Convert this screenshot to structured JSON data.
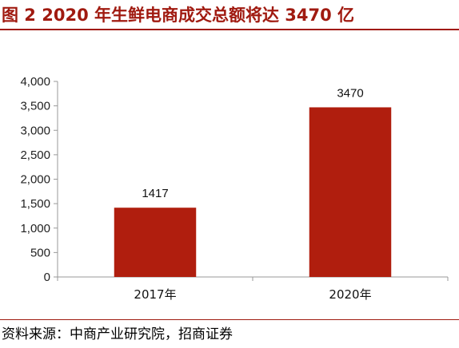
{
  "figure": {
    "title": "图 2 2020 年生鲜电商成交总额将达 3470 亿",
    "source": "资料来源：中商产业研究院，招商证券"
  },
  "colors": {
    "bar": "#b01e0e",
    "title": "#a01a10",
    "axis": "#999999"
  },
  "chart_data": {
    "type": "bar",
    "categories": [
      "2017年",
      "2020年"
    ],
    "values": [
      1417,
      3470
    ],
    "data_labels": [
      "1417",
      "3470"
    ],
    "title": "",
    "xlabel": "",
    "ylabel": "",
    "ylim": [
      0,
      4000
    ],
    "yticks": [
      0,
      500,
      1000,
      1500,
      2000,
      2500,
      3000,
      3500,
      4000
    ],
    "ytick_labels": [
      "0",
      "500",
      "1,000",
      "1,500",
      "2,000",
      "2,500",
      "3,000",
      "3,500",
      "4,000"
    ],
    "grid": false,
    "legend": "none"
  }
}
